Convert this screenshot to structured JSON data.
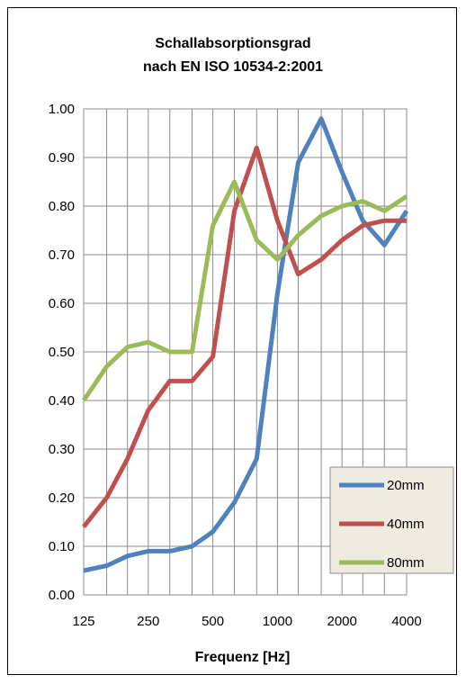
{
  "chart_data": {
    "type": "line",
    "title_line1": "Schallabsorptionsgrad",
    "title_line2": "nach EN ISO 10534-2:2001",
    "xlabel": "Frequenz [Hz]",
    "ylabel": "",
    "x_scale": "log",
    "x": [
      125,
      160,
      200,
      250,
      315,
      400,
      500,
      630,
      800,
      1000,
      1250,
      1600,
      2000,
      2500,
      3150,
      4000
    ],
    "x_tick_labels": [
      "125",
      "250",
      "500",
      "1000",
      "2000",
      "4000"
    ],
    "x_tick_values": [
      125,
      250,
      500,
      1000,
      2000,
      4000
    ],
    "ylim": [
      0,
      1.0
    ],
    "y_tick_labels": [
      "0.00",
      "0.10",
      "0.20",
      "0.30",
      "0.40",
      "0.50",
      "0.60",
      "0.70",
      "0.80",
      "0.90",
      "1.00"
    ],
    "grid": true,
    "legend_position": "bottom-right",
    "series": [
      {
        "name": "20mm",
        "color": "#4f81bd",
        "values": [
          0.05,
          0.06,
          0.08,
          0.09,
          0.09,
          0.1,
          0.13,
          0.19,
          0.28,
          0.62,
          0.89,
          0.98,
          0.87,
          0.77,
          0.72,
          0.79
        ]
      },
      {
        "name": "40mm",
        "color": "#c0504d",
        "values": [
          0.14,
          0.2,
          0.28,
          0.38,
          0.44,
          0.44,
          0.49,
          0.79,
          0.92,
          0.77,
          0.66,
          0.69,
          0.73,
          0.76,
          0.77,
          0.77
        ]
      },
      {
        "name": "80mm",
        "color": "#9bbb59",
        "values": [
          0.4,
          0.47,
          0.51,
          0.52,
          0.5,
          0.5,
          0.76,
          0.85,
          0.73,
          0.69,
          0.74,
          0.78,
          0.8,
          0.81,
          0.79,
          0.82
        ]
      }
    ]
  }
}
